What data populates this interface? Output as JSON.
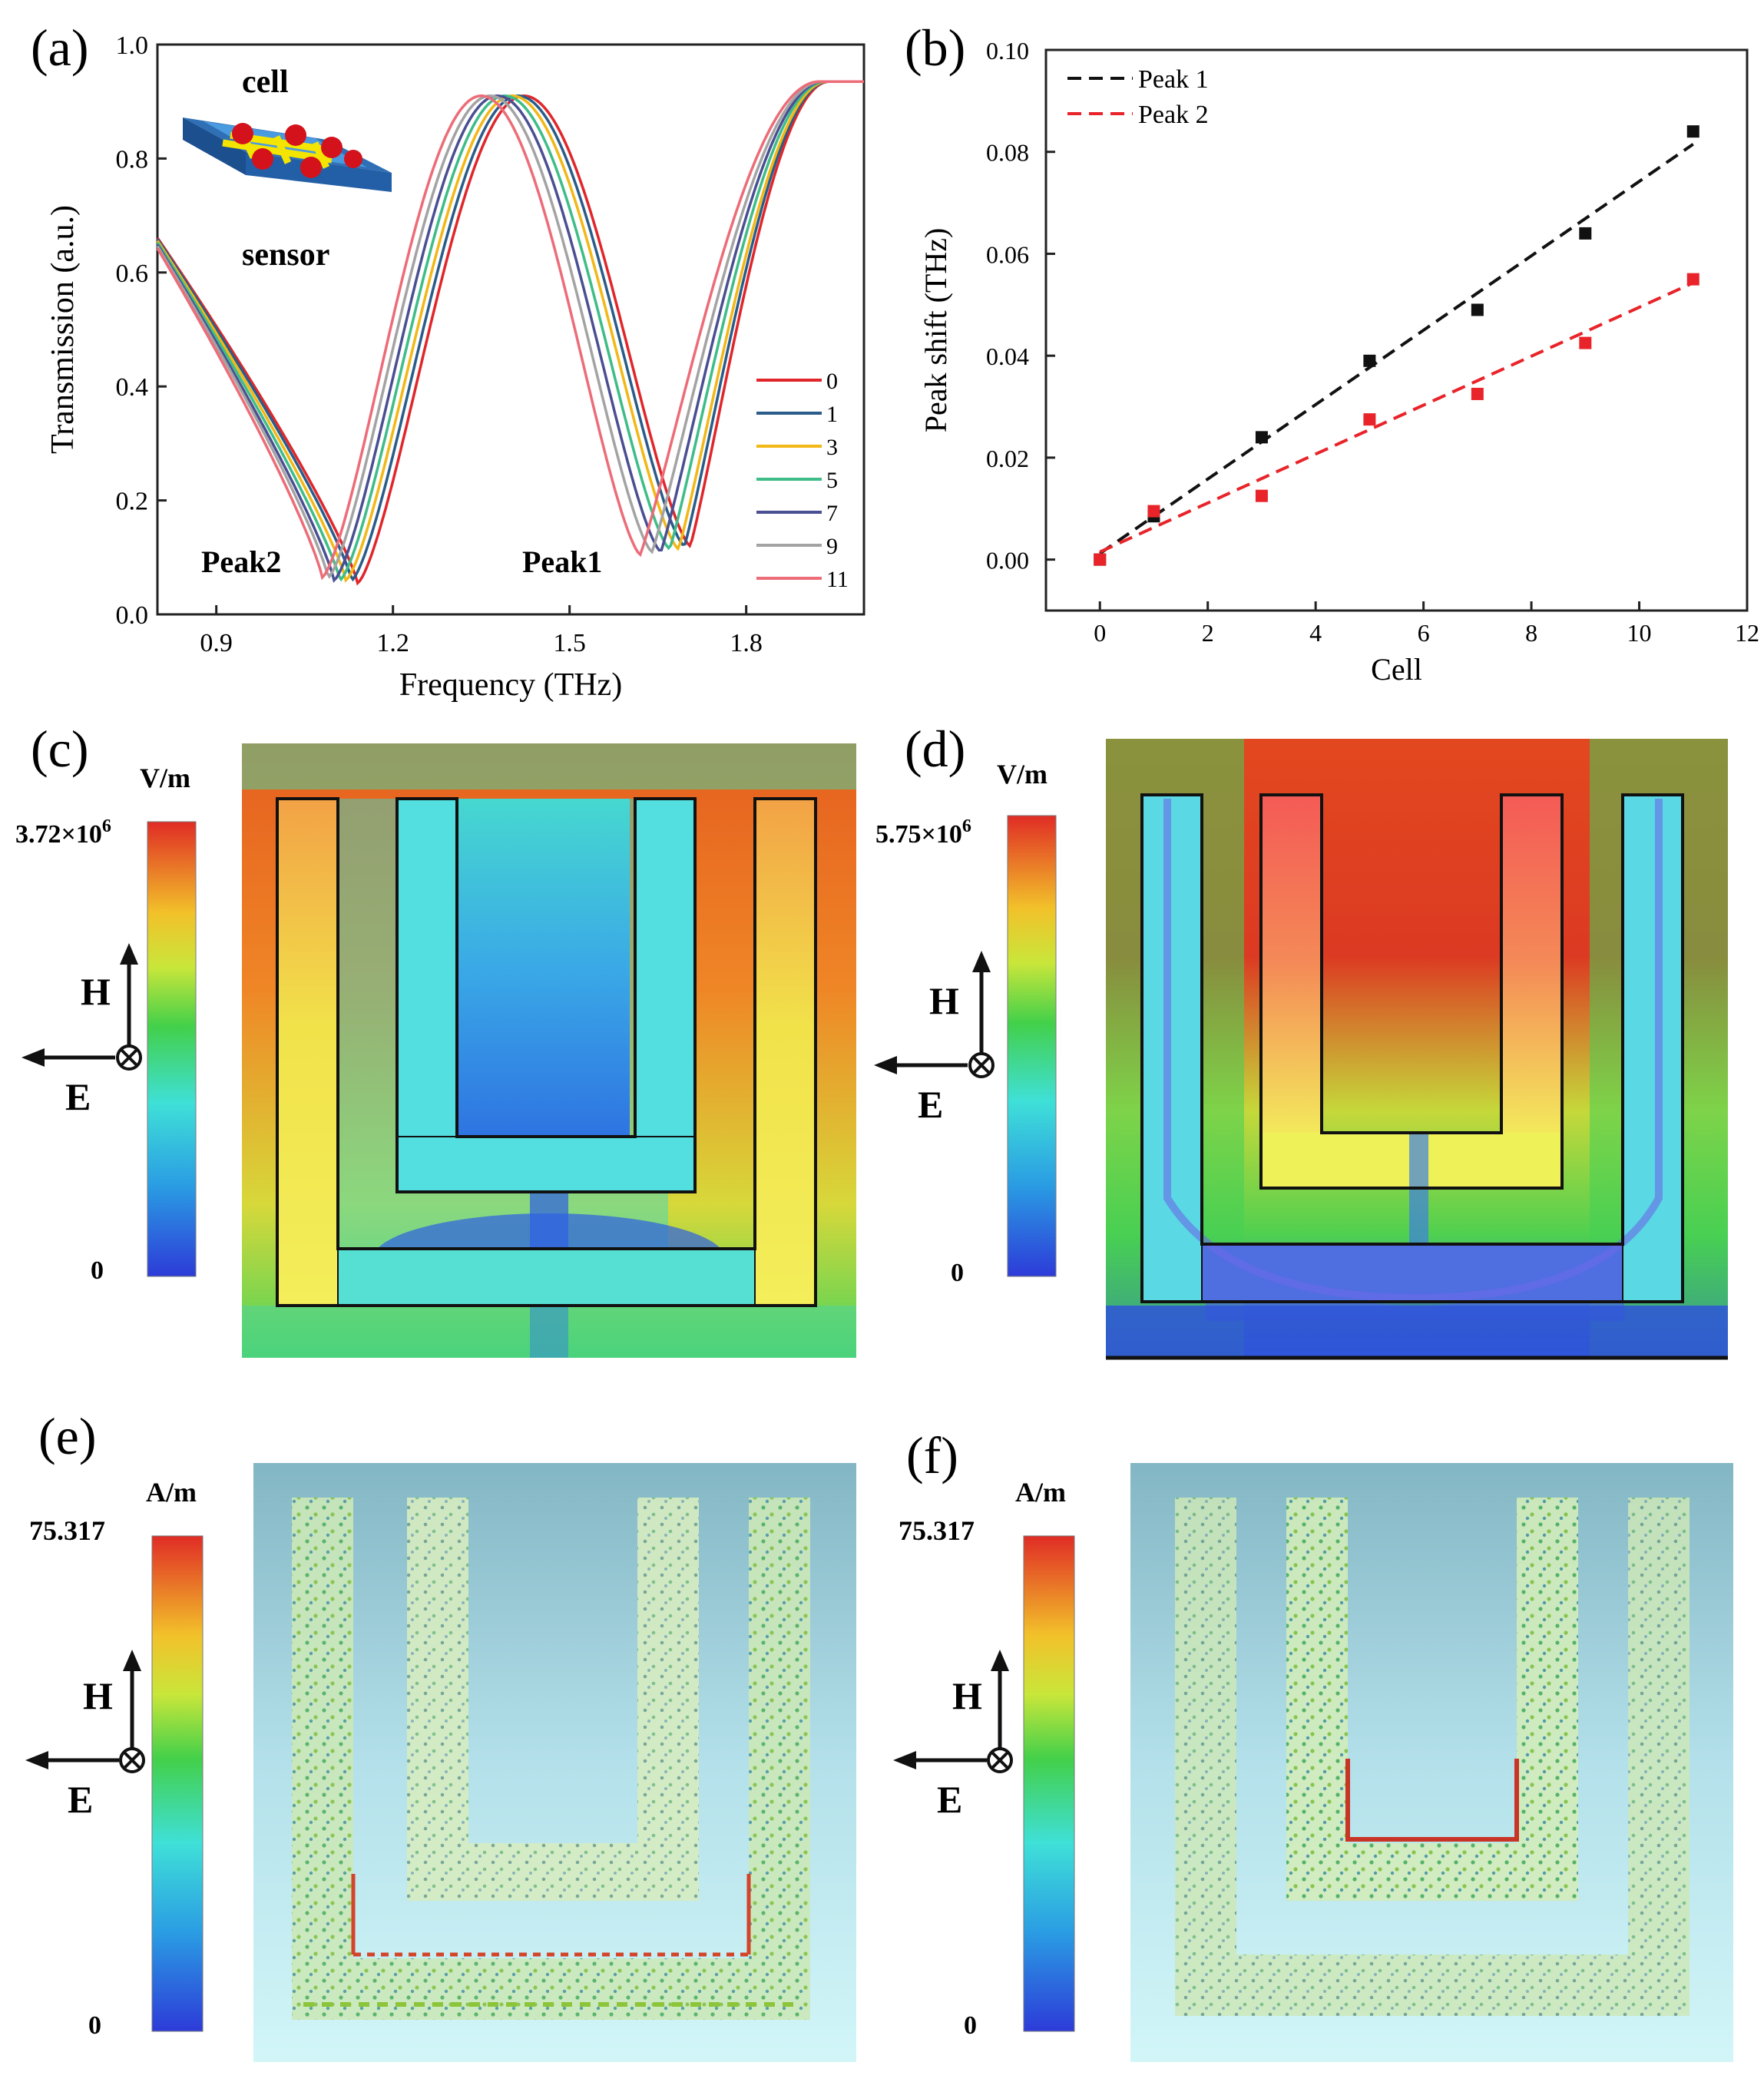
{
  "panel_labels": {
    "a": "(a)",
    "b": "(b)",
    "c": "(c)",
    "d": "(d)",
    "e": "(e)",
    "f": "(f)"
  },
  "colors": {
    "c0": "#e0262a",
    "c1": "#2a5c8a",
    "c3": "#f2b817",
    "c5": "#3ebd88",
    "c7": "#4a4f92",
    "c9": "#a3a3a3",
    "c11": "#ec6c78",
    "peak1": "#111111",
    "peak2": "#e8242a"
  },
  "panel_a": {
    "inset": {
      "top": "cell",
      "bottom": "sensor"
    },
    "peak_labels": {
      "left": "Peak2",
      "right": "Peak1"
    },
    "legend_colors": [
      "#e0262a",
      "#2a5c8a",
      "#f2b817",
      "#3ebd88",
      "#4a4f92",
      "#a3a3a3",
      "#ec6c78"
    ]
  },
  "chart_data": [
    {
      "type": "line",
      "title": "",
      "xlabel": "Frequency (THz)",
      "ylabel": "Transmission (a.u.)",
      "xlim": [
        0.8,
        2.0
      ],
      "ylim": [
        0.0,
        1.0
      ],
      "xticks": [
        "0.9",
        "1.2",
        "1.5",
        "1.8"
      ],
      "yticks": [
        "0.0",
        "0.2",
        "0.4",
        "0.6",
        "0.8",
        "1.0"
      ],
      "series": [
        {
          "name": "0",
          "peak2": 1.14,
          "peak1": 1.705,
          "min2": 0.055,
          "min1": 0.12
        },
        {
          "name": "1",
          "peak2": 1.13,
          "peak1": 1.695,
          "min2": 0.06,
          "min1": 0.12
        },
        {
          "name": "3",
          "peak2": 1.12,
          "peak1": 1.685,
          "min2": 0.06,
          "min1": 0.115
        },
        {
          "name": "5",
          "peak2": 1.11,
          "peak1": 1.67,
          "min2": 0.06,
          "min1": 0.115
        },
        {
          "name": "7",
          "peak2": 1.1,
          "peak1": 1.655,
          "min2": 0.06,
          "min1": 0.11
        },
        {
          "name": "9",
          "peak2": 1.09,
          "peak1": 1.64,
          "min2": 0.065,
          "min1": 0.11
        },
        {
          "name": "11",
          "peak2": 1.08,
          "peak1": 1.62,
          "min2": 0.065,
          "min1": 0.105
        }
      ]
    },
    {
      "type": "scatter",
      "title": "",
      "xlabel": "Cell",
      "ylabel": "Peak shift (THz)",
      "xlim": [
        -1,
        12
      ],
      "ylim": [
        -0.01,
        0.1
      ],
      "xticks": [
        "0",
        "2",
        "4",
        "6",
        "8",
        "10",
        "12"
      ],
      "yticks": [
        "0.00",
        "0.02",
        "0.04",
        "0.06",
        "0.08",
        "0.10"
      ],
      "x": [
        0,
        1,
        3,
        5,
        7,
        9,
        11
      ],
      "series": [
        {
          "name": "Peak 1",
          "values": [
            0.0,
            0.0085,
            0.024,
            0.039,
            0.049,
            0.064,
            0.084
          ],
          "fit": [
            0.0012,
            0.0073
          ]
        },
        {
          "name": "Peak 2",
          "values": [
            0.0,
            0.0095,
            0.0125,
            0.0275,
            0.0325,
            0.0425,
            0.055
          ],
          "fit": [
            0.0015,
            0.0048
          ]
        }
      ]
    }
  ],
  "panel_c": {
    "unit": "V/m",
    "max": "3.72×10",
    "max_exp": "6",
    "min": "0"
  },
  "panel_d": {
    "unit": "V/m",
    "max": "5.75×10",
    "max_exp": "6",
    "min": "0"
  },
  "panel_e": {
    "unit": "A/m",
    "max": "75.317",
    "min": "0"
  },
  "panel_f": {
    "unit": "A/m",
    "max": "75.317",
    "min": "0"
  },
  "axes_labels": {
    "H": "H",
    "E": "E"
  }
}
